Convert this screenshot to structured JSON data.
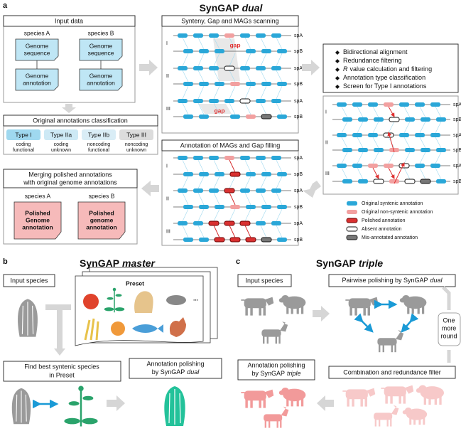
{
  "panel_a": {
    "label": "a",
    "title": "SynGAP",
    "title_mode": "dual",
    "input_data": {
      "heading": "Input data",
      "species": [
        {
          "name": "species A",
          "sequence": [
            "Genome",
            "sequence"
          ],
          "annotation": [
            "Genome",
            "annotation"
          ]
        },
        {
          "name": "species B",
          "sequence": [
            "Genome",
            "sequence"
          ],
          "annotation": [
            "Genome",
            "annotation"
          ]
        }
      ]
    },
    "classification": {
      "heading": "Original annotations classification",
      "types": [
        {
          "name": "Type I",
          "line1": "coding",
          "line2": "functional"
        },
        {
          "name": "Type IIa",
          "line1": "coding",
          "line2": "unknown"
        },
        {
          "name": "Type IIb",
          "line1": "noncoding",
          "line2": "functional"
        },
        {
          "name": "Type III",
          "line1": "noncoding",
          "line2": "unknown"
        }
      ]
    },
    "merging": {
      "heading": [
        "Merging polished annotations",
        "with original genome annotations"
      ],
      "species": [
        {
          "name": "species A",
          "doc": [
            "Polished",
            "Genome",
            "annotation"
          ]
        },
        {
          "name": "species B",
          "doc": [
            "Polished",
            "genome",
            "annotation"
          ]
        }
      ]
    },
    "scanning": {
      "heading": "Synteny, Gap and MAGs scanning"
    },
    "gap_filling": {
      "heading": "Annotation of MAGs and Gap filling"
    },
    "track_labels": {
      "rows": [
        "I",
        "II",
        "III"
      ],
      "spA": "spA",
      "spB": "spB",
      "gap": "gap"
    },
    "steps": [
      {
        "text": "Bidirectional alignment"
      },
      {
        "text": "Redundance filtering"
      },
      {
        "italic": "R",
        "text": "value calculation and filtering"
      },
      {
        "text": "Annotation type classification"
      },
      {
        "text": "Screen for Type I annotations"
      }
    ],
    "legend": [
      "Original syntenic annotation",
      "Original non-syntenic annotation",
      "Polished annotation",
      "Absent annotation",
      "Mis-annotated annotation"
    ]
  },
  "panel_b": {
    "label": "b",
    "title": "SynGAP",
    "title_mode": "master",
    "input": "Input species",
    "preset": "Preset",
    "more": "...",
    "find": [
      "Find best syntenic species",
      "in Preset"
    ],
    "polish": {
      "line1": "Annotation polishing",
      "line2": "by SynGAP",
      "mode": "dual"
    }
  },
  "panel_c": {
    "label": "c",
    "title": "SynGAP",
    "title_mode": "triple",
    "input": "Input species",
    "pairwise": {
      "text": "Pairwise polishing by SynGAP",
      "mode": "dual"
    },
    "round": [
      "One",
      "more",
      "round"
    ],
    "combination": "Combination and redundance filter",
    "polish": {
      "line1": "Annotation polishing",
      "line2": "by SynGAP",
      "mode": "triple"
    }
  }
}
